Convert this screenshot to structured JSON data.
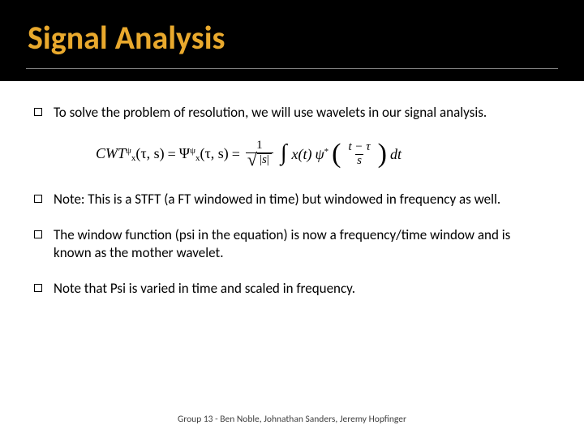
{
  "colors": {
    "title_bg": "#000000",
    "title_fg": "#e9a92d",
    "underline": "#7f7f7f",
    "body_text": "#000000",
    "footer_text": "#404040",
    "page_bg": "#ffffff"
  },
  "typography": {
    "title_fontsize_pt": 40,
    "title_weight": "700",
    "bullet_fontsize_pt": 17,
    "footer_fontsize_pt": 11.5,
    "equation_family": "Times New Roman"
  },
  "title": "Signal Analysis",
  "bullets": [
    "To solve the problem of resolution, we will use wavelets in our signal analysis.",
    "Note: This is  a STFT (a FT windowed in time)  but windowed in frequency as well.",
    "The window function (psi in the equation) is now a frequency/time window and is known as the mother wavelet.",
    "Note that Psi is varied in time and scaled in frequency."
  ],
  "equation": {
    "lhs_sym": "CWT",
    "lhs_sup": "ψ",
    "lhs_sub": "x",
    "args": "(τ, s)",
    "eq": "=",
    "mid_sym": "Ψ",
    "mid_sup": "ψ",
    "mid_sub": "x",
    "frac1_num": "1",
    "frac1_den_abs_open": "|",
    "frac1_den_body": "s",
    "frac1_den_abs_close": "|",
    "integral": "∫",
    "integrand_x": "x(t)",
    "psi_star": "ψ",
    "star": "*",
    "paren_open": "(",
    "frac2_num": "t − τ",
    "frac2_den": "s",
    "paren_close": ")",
    "dt": " dt"
  },
  "footer": "Group 13 - Ben Noble, Johnathan Sanders, Jeremy Hopfinger"
}
